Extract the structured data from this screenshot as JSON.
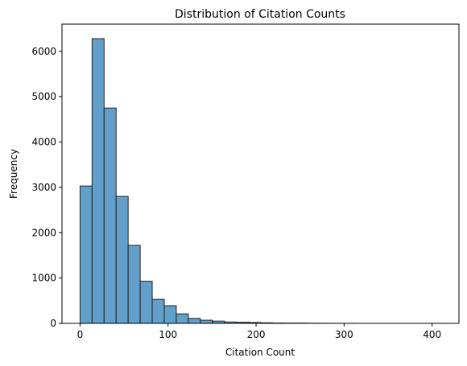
{
  "chart_data": {
    "type": "histogram",
    "title": "Distribution of Citation Counts",
    "x_label": "Citation Count",
    "y_label": "Frequency",
    "bins": [
      0,
      13.67,
      27.33,
      41,
      54.67,
      68.33,
      82,
      95.67,
      109.33,
      123,
      136.67,
      150.33,
      164,
      177.67,
      191.33,
      205,
      218.67,
      232.33,
      246,
      259.67,
      273.33,
      287,
      300.67,
      314.33,
      328,
      341.67,
      355.33,
      369,
      382.67,
      396.33,
      410
    ],
    "values": [
      3030,
      6280,
      4750,
      2800,
      1720,
      930,
      530,
      390,
      210,
      110,
      70,
      50,
      30,
      25,
      20,
      12,
      8,
      6,
      5,
      3,
      2,
      1,
      1,
      0,
      0,
      0,
      0,
      0,
      0,
      1
    ],
    "color": "#629fca",
    "edgecolor": "#222222",
    "xlim": [
      -20.5,
      430.5
    ],
    "xticks": [
      0,
      100,
      200,
      300,
      400
    ],
    "ylim": [
      0,
      6600
    ],
    "yticks": [
      0,
      1000,
      2000,
      3000,
      4000,
      5000,
      6000
    ]
  }
}
